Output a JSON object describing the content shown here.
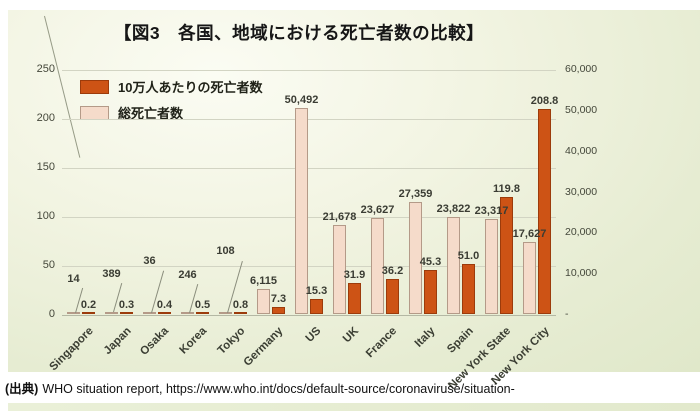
{
  "title": "【図3　各国、地域における死亡者数の比較】",
  "source": {
    "label": "(出典)",
    "text": "WHO situation report, https://www.who.int/docs/default-source/coronaviruse/situation-"
  },
  "chart_data": {
    "type": "bar",
    "title": "各国、地域における死亡者数の比較",
    "categories": [
      "Singapore",
      "Japan",
      "Osaka",
      "Korea",
      "Tokyo",
      "Germany",
      "US",
      "UK",
      "France",
      "Italy",
      "Spain",
      "New York State",
      "New York City"
    ],
    "series": [
      {
        "name": "10万人あたりの死亡者数",
        "axis": "left",
        "color": "#cd5315",
        "border_color": "#9c3b0b",
        "values": [
          0.2,
          0.3,
          0.4,
          0.5,
          0.8,
          7.3,
          15.3,
          31.9,
          36.2,
          45.3,
          51.0,
          119.8,
          208.8
        ],
        "labels": [
          "0.2",
          "0.3",
          "0.4",
          "0.5",
          "0.8",
          "7.3",
          "15.3",
          "31.9",
          "36.2",
          "45.3",
          "51.0",
          "119.8",
          "208.8"
        ]
      },
      {
        "name": "総死亡者数",
        "axis": "right",
        "color": "#f5dbca",
        "border_color": "#b49a88",
        "values": [
          14,
          389,
          36,
          246,
          108,
          6115,
          50492,
          21678,
          23627,
          27359,
          23822,
          23317,
          17627
        ],
        "labels": [
          "14",
          "389",
          "36",
          "246",
          "108",
          "6,115",
          "50,492",
          "21,678",
          "23,627",
          "27,359",
          "23,822",
          "23,317",
          "17,627"
        ]
      }
    ],
    "left_axis": {
      "ticks": [
        "250",
        "200",
        "150",
        "100",
        "50",
        "0"
      ],
      "min": 0,
      "max": 250
    },
    "right_axis": {
      "ticks": [
        "60,000",
        "50,000",
        "40,000",
        "30,000",
        "20,000",
        "10,000",
        "-"
      ],
      "min": 0,
      "max": 60000
    },
    "grid": true,
    "legend_position": "top-left"
  }
}
